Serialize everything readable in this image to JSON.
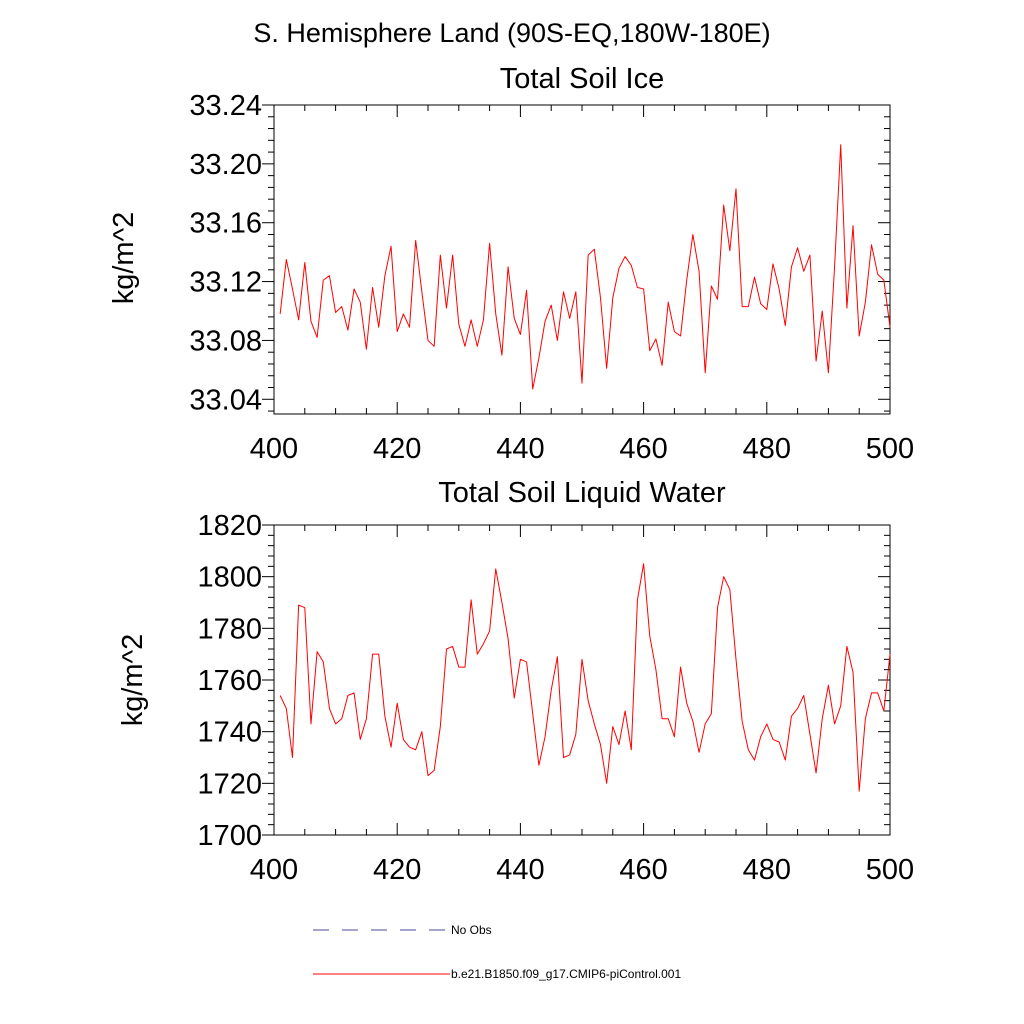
{
  "page_title": "S. Hemisphere Land (90S-EQ,180W-180E)",
  "colors": {
    "model_line": "#ff0000",
    "obs_line": "#4a4a9a",
    "axis": "#000000"
  },
  "legend": [
    {
      "label": "No Obs",
      "style": "dashed",
      "color": "#4a4a9a"
    },
    {
      "label": "b.e21.B1850.f09_g17.CMIP6-piControl.001",
      "style": "solid",
      "color": "#ff0000"
    }
  ],
  "chart_data": [
    {
      "type": "line",
      "title": "Total Soil Ice",
      "xlabel": "",
      "ylabel": "kg/m^2",
      "xlim": [
        400,
        500
      ],
      "ylim": [
        33.03,
        33.24
      ],
      "xticks": [
        400,
        420,
        440,
        460,
        480,
        500
      ],
      "xtick_labels": [
        "400",
        "420",
        "440",
        "460",
        "480",
        "500"
      ],
      "yticks": [
        33.04,
        33.08,
        33.12,
        33.16,
        33.2,
        33.24
      ],
      "ytick_labels": [
        "33.04",
        "33.08",
        "33.12",
        "33.16",
        "33.20",
        "33.24"
      ],
      "series": [
        {
          "name": "b.e21.B1850.f09_g17.CMIP6-piControl.001",
          "x_start": 401,
          "values": [
            33.098,
            33.135,
            33.115,
            33.094,
            33.133,
            33.093,
            33.082,
            33.121,
            33.124,
            33.099,
            33.103,
            33.087,
            33.115,
            33.106,
            33.074,
            33.116,
            33.089,
            33.124,
            33.144,
            33.086,
            33.098,
            33.089,
            33.148,
            33.113,
            33.08,
            33.076,
            33.138,
            33.102,
            33.138,
            33.091,
            33.076,
            33.094,
            33.076,
            33.094,
            33.146,
            33.098,
            33.07,
            33.13,
            33.095,
            33.084,
            33.114,
            33.047,
            33.068,
            33.093,
            33.104,
            33.08,
            33.113,
            33.095,
            33.113,
            33.051,
            33.138,
            33.142,
            33.109,
            33.061,
            33.109,
            33.129,
            33.137,
            33.131,
            33.116,
            33.115,
            33.073,
            33.081,
            33.063,
            33.106,
            33.086,
            33.083,
            33.121,
            33.152,
            33.127,
            33.058,
            33.117,
            33.108,
            33.172,
            33.141,
            33.183,
            33.103,
            33.103,
            33.123,
            33.105,
            33.101,
            33.132,
            33.115,
            33.09,
            33.13,
            33.143,
            33.127,
            33.138,
            33.066,
            33.1,
            33.058,
            33.13,
            33.213,
            33.102,
            33.158,
            33.083,
            33.106,
            33.145,
            33.125,
            33.121,
            33.089
          ]
        }
      ]
    },
    {
      "type": "line",
      "title": "Total Soil Liquid Water",
      "xlabel": "",
      "ylabel": "kg/m^2",
      "xlim": [
        400,
        500
      ],
      "ylim": [
        1700,
        1820
      ],
      "xticks": [
        400,
        420,
        440,
        460,
        480,
        500
      ],
      "xtick_labels": [
        "400",
        "420",
        "440",
        "460",
        "480",
        "500"
      ],
      "yticks": [
        1700,
        1720,
        1740,
        1760,
        1780,
        1800,
        1820
      ],
      "ytick_labels": [
        "1700",
        "1720",
        "1740",
        "1760",
        "1780",
        "1800",
        "1820"
      ],
      "series": [
        {
          "name": "b.e21.B1850.f09_g17.CMIP6-piControl.001",
          "x_start": 401,
          "values": [
            1754,
            1749,
            1730,
            1789,
            1788,
            1743,
            1771,
            1767,
            1749,
            1743,
            1745,
            1754,
            1755,
            1737,
            1745,
            1770,
            1770,
            1746,
            1734,
            1751,
            1737,
            1734,
            1733,
            1740,
            1723,
            1725,
            1742,
            1772,
            1773,
            1765,
            1765,
            1791,
            1770,
            1774,
            1779,
            1803,
            1790,
            1776,
            1753,
            1768,
            1767,
            1747,
            1727,
            1738,
            1756,
            1769,
            1730,
            1731,
            1739,
            1768,
            1752,
            1743,
            1735,
            1720,
            1742,
            1735,
            1748,
            1733,
            1791,
            1805,
            1777,
            1764,
            1745,
            1745,
            1738,
            1765,
            1751,
            1744,
            1732,
            1743,
            1747,
            1788,
            1800,
            1795,
            1768,
            1744,
            1733,
            1729,
            1738,
            1743,
            1737,
            1736,
            1729,
            1746,
            1749,
            1754,
            1739,
            1724,
            1745,
            1758,
            1743,
            1750,
            1773,
            1763,
            1717,
            1745,
            1755,
            1755,
            1748,
            1770
          ]
        }
      ]
    }
  ]
}
